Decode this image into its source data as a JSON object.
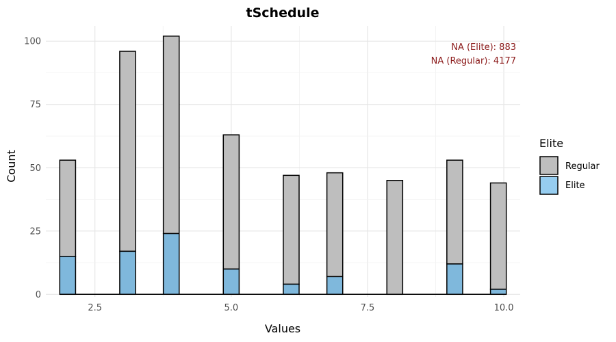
{
  "chart_data": {
    "type": "bar",
    "title": "tSchedule",
    "xlabel": "Values",
    "ylabel": "Count",
    "xlim": [
      1.6,
      10.3
    ],
    "ylim": [
      -1,
      106
    ],
    "x_ticks": [
      2.5,
      5.0,
      7.5,
      10.0
    ],
    "x_tick_labels": [
      "2.5",
      "5.0",
      "7.5",
      "10.0"
    ],
    "y_ticks": [
      0,
      25,
      50,
      75,
      100
    ],
    "y_tick_labels": [
      "0",
      "25",
      "50",
      "75",
      "100"
    ],
    "bin_width": 0.29,
    "grid": true,
    "stacked": true,
    "x": [
      2.0,
      3.1,
      3.9,
      5.0,
      6.1,
      6.9,
      8.0,
      9.1,
      9.9
    ],
    "series": [
      {
        "name": "Regular",
        "color": "#bebebe",
        "values": [
          38,
          79,
          78,
          53,
          43,
          41,
          45,
          41,
          42
        ]
      },
      {
        "name": "Elite",
        "color": "#7fb8dc",
        "values": [
          15,
          17,
          24,
          10,
          4,
          7,
          0,
          12,
          2
        ]
      }
    ],
    "legend": {
      "title": "Elite",
      "position": "right",
      "entries": [
        {
          "label": "Regular",
          "color": "#bebebe"
        },
        {
          "label": "Elite",
          "color": "#96cdf0"
        }
      ]
    },
    "annotations": [
      "NA (Elite): 883",
      "NA (Regular): 4177"
    ]
  }
}
